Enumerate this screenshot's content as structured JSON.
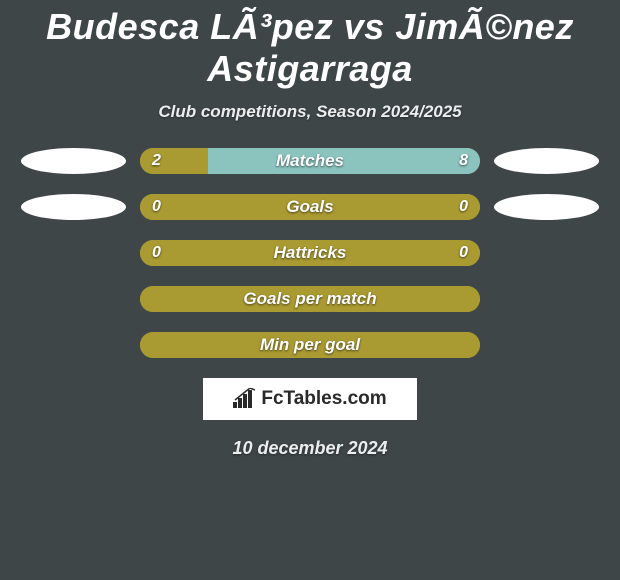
{
  "title": "Budesca LÃ³pez vs JimÃ©nez Astigarraga",
  "subtitle": "Club competitions, Season 2024/2025",
  "date": "10 december 2024",
  "logo_text": "FcTables.com",
  "colors": {
    "background": "#3e4648",
    "left_fill": "#aa9a32",
    "right_fill": "#8bc4be",
    "empty_fill": "#aa9a32",
    "placeholder": "#ffffff",
    "logo_bg": "#ffffff",
    "text": "#ffffff"
  },
  "rows": [
    {
      "label": "Matches",
      "left_value": "2",
      "right_value": "8",
      "left_pct": 20,
      "right_pct": 80,
      "show_placeholders": true
    },
    {
      "label": "Goals",
      "left_value": "0",
      "right_value": "0",
      "left_pct": 100,
      "right_pct": 0,
      "show_placeholders": true
    },
    {
      "label": "Hattricks",
      "left_value": "0",
      "right_value": "0",
      "left_pct": 100,
      "right_pct": 0,
      "show_placeholders": false
    },
    {
      "label": "Goals per match",
      "left_value": "",
      "right_value": "",
      "left_pct": 100,
      "right_pct": 0,
      "show_placeholders": false
    },
    {
      "label": "Min per goal",
      "left_value": "",
      "right_value": "",
      "left_pct": 100,
      "right_pct": 0,
      "show_placeholders": false
    }
  ]
}
